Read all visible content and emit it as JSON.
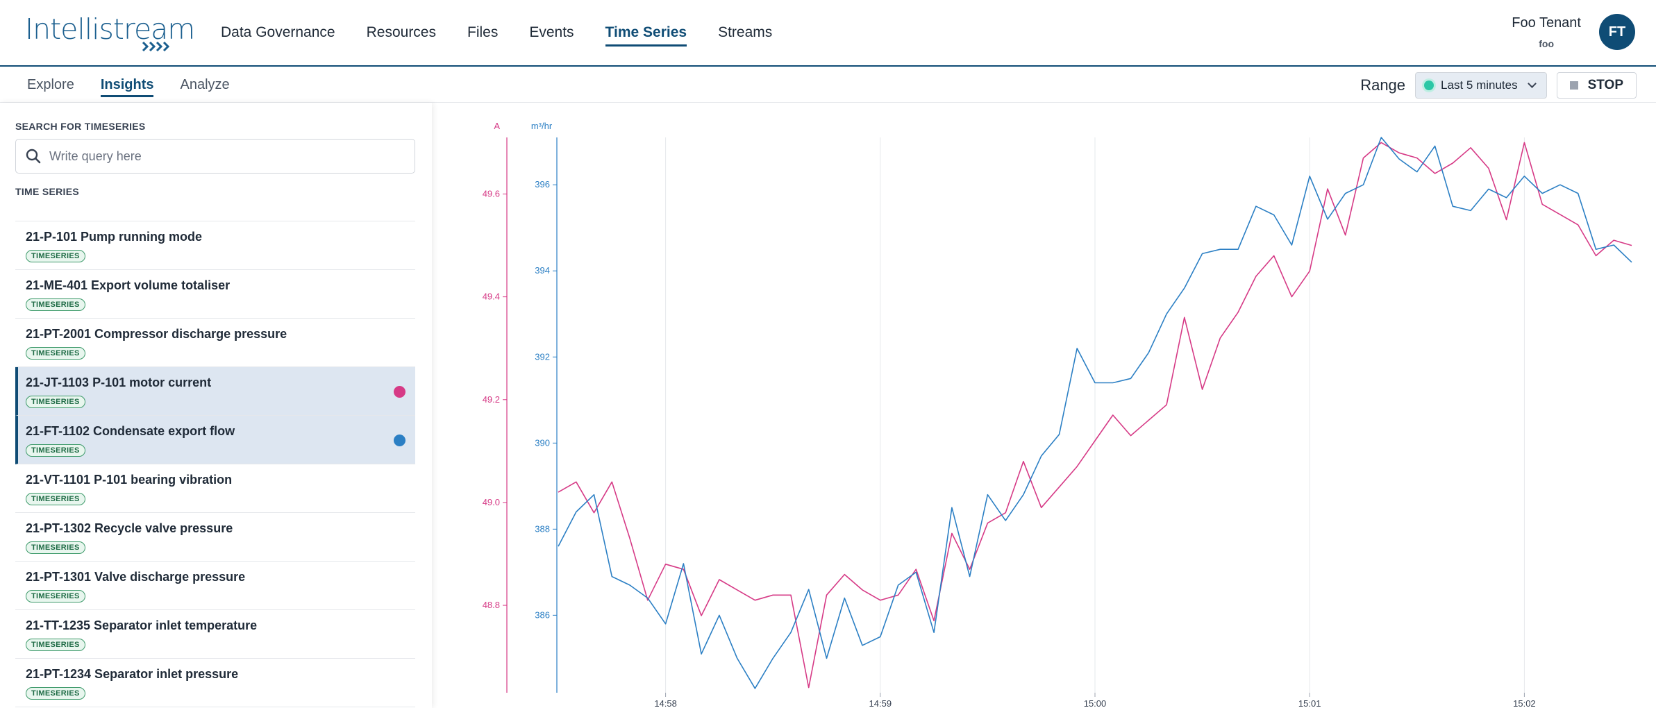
{
  "brand": {
    "logo_text": "Intellistream",
    "logo_color": "#1b5f8f"
  },
  "nav": {
    "items": [
      {
        "label": "Data Governance",
        "active": false
      },
      {
        "label": "Resources",
        "active": false
      },
      {
        "label": "Files",
        "active": false
      },
      {
        "label": "Events",
        "active": false
      },
      {
        "label": "Time Series",
        "active": true
      },
      {
        "label": "Streams",
        "active": false
      }
    ]
  },
  "user": {
    "name": "Foo Tenant",
    "tenant": "foo",
    "initials": "FT"
  },
  "subnav": {
    "tabs": [
      {
        "label": "Explore",
        "active": false
      },
      {
        "label": "Insights",
        "active": true
      },
      {
        "label": "Analyze",
        "active": false
      }
    ],
    "range_label": "Range",
    "range_value": "Last 5 minutes",
    "stop_label": "STOP"
  },
  "sidebar": {
    "search_title": "SEARCH FOR TIMESERIES",
    "search_placeholder": "Write query here",
    "list_title": "TIME SERIES",
    "badge_label": "TIMESERIES",
    "items": [
      {
        "name": "21-P-101 Pump running mode",
        "selected": false,
        "color": null
      },
      {
        "name": "21-ME-401 Export volume totaliser",
        "selected": false,
        "color": null
      },
      {
        "name": "21-PT-2001 Compressor discharge pressure",
        "selected": false,
        "color": null
      },
      {
        "name": "21-JT-1103 P-101 motor current",
        "selected": true,
        "color": "#d63a86"
      },
      {
        "name": "21-FT-1102 Condensate export flow",
        "selected": true,
        "color": "#2b7fc4"
      },
      {
        "name": "21-VT-1101 P-101 bearing vibration",
        "selected": false,
        "color": null
      },
      {
        "name": "21-PT-1302 Recycle valve pressure",
        "selected": false,
        "color": null
      },
      {
        "name": "21-PT-1301 Valve discharge pressure",
        "selected": false,
        "color": null
      },
      {
        "name": "21-TT-1235 Separator inlet temperature",
        "selected": false,
        "color": null
      },
      {
        "name": "21-PT-1234 Separator inlet pressure",
        "selected": false,
        "color": null
      }
    ]
  },
  "chart_data": {
    "type": "line",
    "x_ticks": [
      "14:58",
      "14:59",
      "15:00",
      "15:01",
      "15:02"
    ],
    "x_tick_positions": [
      0.5,
      1.5,
      2.5,
      3.5,
      4.5
    ],
    "xlim": [
      0,
      5
    ],
    "axes": [
      {
        "unit": "A",
        "color": "#d63a86",
        "ylim": [
          48.63,
          49.71
        ],
        "ticks": [
          48.8,
          49.0,
          49.2,
          49.4,
          49.6
        ],
        "tick_labels": [
          "48.8",
          "49.0",
          "49.2",
          "49.4",
          "49.6"
        ]
      },
      {
        "unit": "m³/hr",
        "color": "#2b7fc4",
        "ylim": [
          384.2,
          397.1
        ],
        "ticks": [
          386,
          388,
          390,
          392,
          394,
          396
        ],
        "tick_labels": [
          "386",
          "388",
          "390",
          "392",
          "394",
          "396"
        ]
      }
    ],
    "series": [
      {
        "axis": 0,
        "color": "#d63a86",
        "x": [
          0,
          0.0833,
          0.1667,
          0.25,
          0.3333,
          0.4167,
          0.5,
          0.5833,
          0.6667,
          0.75,
          0.8333,
          0.9167,
          1.0,
          1.0833,
          1.1667,
          1.25,
          1.3333,
          1.4167,
          1.5,
          1.5833,
          1.6667,
          1.75,
          1.8333,
          1.9167,
          2.0,
          2.0833,
          2.1667,
          2.25,
          2.3333,
          2.4167,
          2.5,
          2.5833,
          2.6667,
          2.75,
          2.8333,
          2.9167,
          3.0,
          3.0833,
          3.1667,
          3.25,
          3.3333,
          3.4167,
          3.5,
          3.5833,
          3.6667,
          3.75,
          3.8333,
          3.9167,
          4.0,
          4.0833,
          4.1667,
          4.25,
          4.3333,
          4.4167,
          4.5,
          4.5833,
          4.6667,
          4.75,
          4.8333,
          4.9167,
          5.0
        ],
        "y": [
          49.02,
          49.04,
          48.98,
          49.04,
          48.93,
          48.81,
          48.88,
          48.87,
          48.78,
          48.85,
          48.83,
          48.81,
          48.82,
          48.82,
          48.64,
          48.82,
          48.86,
          48.83,
          48.81,
          48.82,
          48.87,
          48.77,
          48.94,
          48.87,
          48.96,
          48.98,
          49.08,
          48.99,
          49.03,
          49.07,
          49.12,
          49.17,
          49.13,
          49.16,
          49.19,
          49.36,
          49.22,
          49.32,
          49.37,
          49.44,
          49.48,
          49.4,
          49.45,
          49.61,
          49.52,
          49.67,
          49.7,
          49.68,
          49.67,
          49.64,
          49.66,
          49.69,
          49.65,
          49.55,
          49.7,
          49.58,
          49.56,
          49.54,
          49.48,
          49.51,
          49.5
        ]
      },
      {
        "axis": 1,
        "color": "#2b7fc4",
        "x": [
          0,
          0.0833,
          0.1667,
          0.25,
          0.3333,
          0.4167,
          0.5,
          0.5833,
          0.6667,
          0.75,
          0.8333,
          0.9167,
          1.0,
          1.0833,
          1.1667,
          1.25,
          1.3333,
          1.4167,
          1.5,
          1.5833,
          1.6667,
          1.75,
          1.8333,
          1.9167,
          2.0,
          2.0833,
          2.1667,
          2.25,
          2.3333,
          2.4167,
          2.5,
          2.5833,
          2.6667,
          2.75,
          2.8333,
          2.9167,
          3.0,
          3.0833,
          3.1667,
          3.25,
          3.3333,
          3.4167,
          3.5,
          3.5833,
          3.6667,
          3.75,
          3.8333,
          3.9167,
          4.0,
          4.0833,
          4.1667,
          4.25,
          4.3333,
          4.4167,
          4.5,
          4.5833,
          4.6667,
          4.75,
          4.8333,
          4.9167,
          5.0
        ],
        "y": [
          387.6,
          388.4,
          388.8,
          386.9,
          386.7,
          386.4,
          385.8,
          387.2,
          385.1,
          386.0,
          385.0,
          384.3,
          385.0,
          385.6,
          386.6,
          385.0,
          386.4,
          385.3,
          385.5,
          386.7,
          387.0,
          385.6,
          388.5,
          386.9,
          388.8,
          388.2,
          388.8,
          389.7,
          390.2,
          392.2,
          391.4,
          391.4,
          391.5,
          392.1,
          393.0,
          393.6,
          394.4,
          394.5,
          394.5,
          395.5,
          395.3,
          394.6,
          396.2,
          395.2,
          395.8,
          396.0,
          397.1,
          396.6,
          396.3,
          396.9,
          395.5,
          395.4,
          395.9,
          395.7,
          396.2,
          395.8,
          396.0,
          395.8,
          394.5,
          394.6,
          394.2
        ]
      }
    ]
  }
}
